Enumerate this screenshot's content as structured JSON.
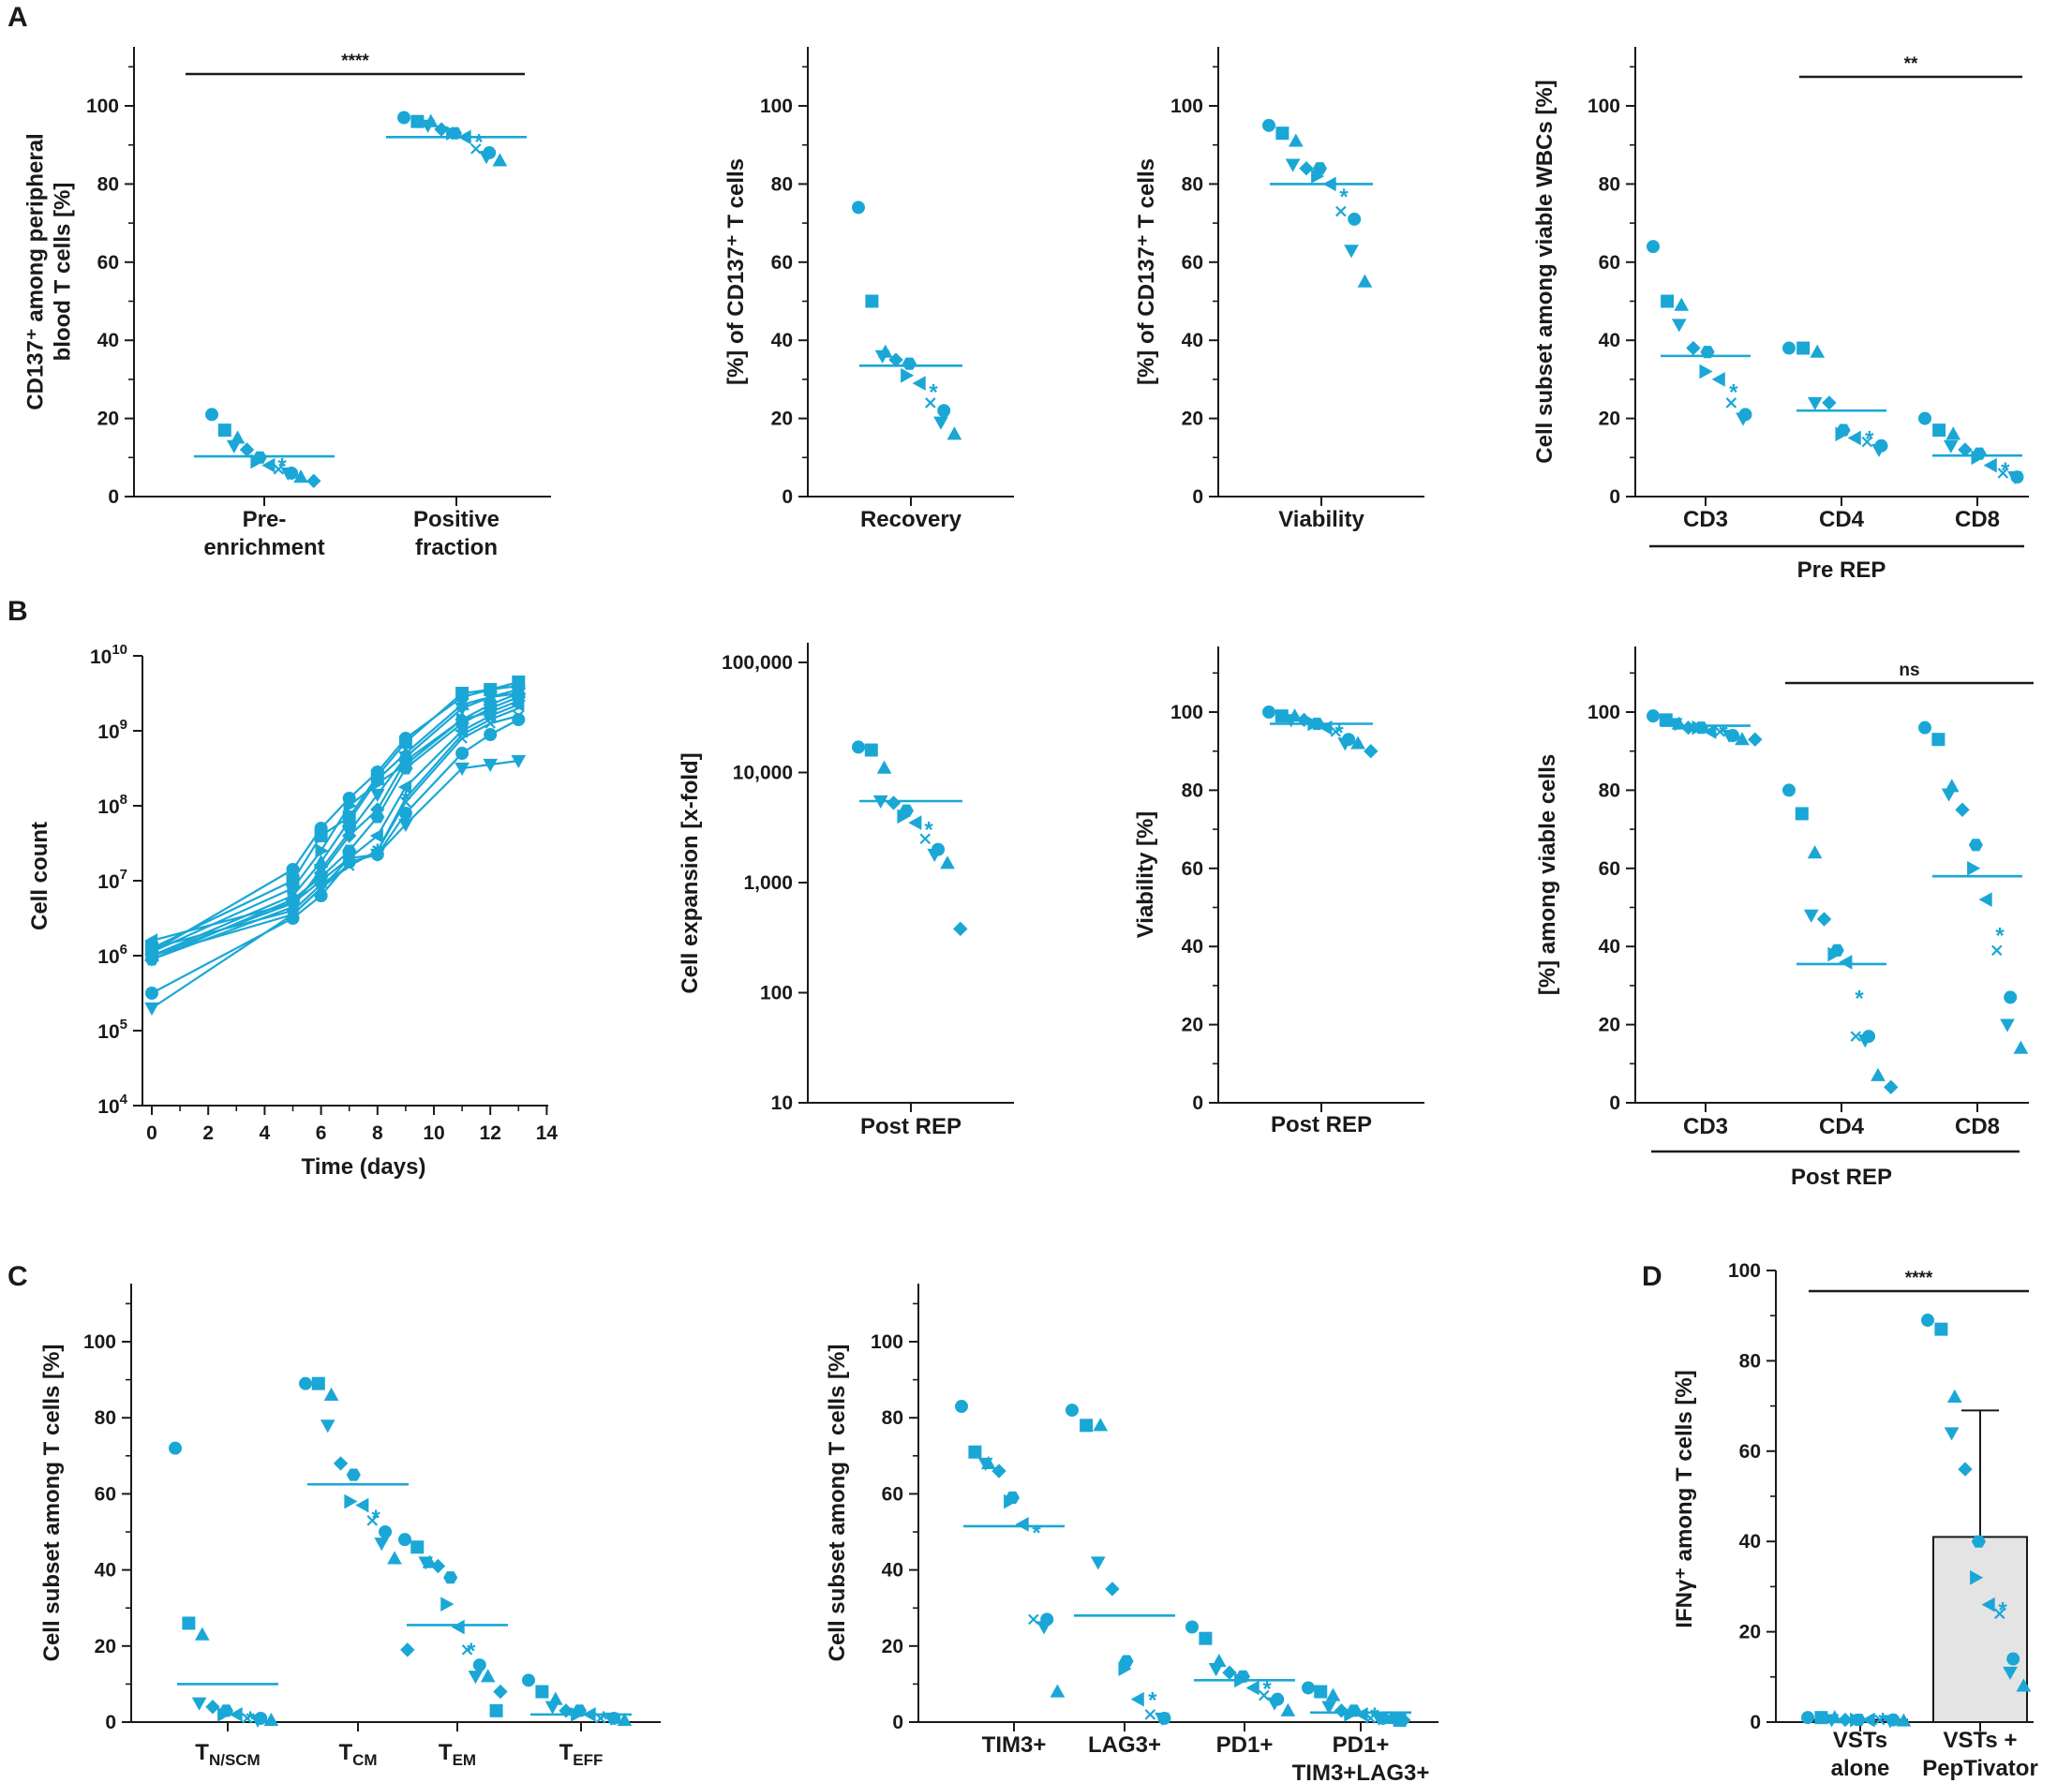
{
  "panels": [
    "A",
    "B",
    "C",
    "D"
  ],
  "color": "#1aa7d6",
  "chart_data": [
    {
      "id": "a1",
      "type": "scatter",
      "ylabel": "CD137+ among peripheral blood T cells [%]",
      "ylabel_lines": [
        "CD137⁺ among peripheral",
        "blood T cells [%]"
      ],
      "yticks": [
        "0",
        "20",
        "40",
        "60",
        "80",
        "100"
      ],
      "ylim": [
        0,
        115
      ],
      "categories": [
        "Pre-\nenrichment",
        "Positive\nfraction"
      ],
      "values": [
        [
          21,
          17,
          15,
          13,
          12,
          10,
          9,
          8,
          8,
          7,
          6,
          6,
          5,
          4
        ],
        [
          97,
          96,
          96,
          95,
          94,
          93,
          93,
          92,
          91,
          89,
          88,
          87,
          86
        ]
      ],
      "means": [
        10.3,
        92
      ],
      "sig": [
        {
          "text": "****",
          "from": 0,
          "to": 1
        }
      ]
    },
    {
      "id": "a2",
      "type": "scatter",
      "ylabel": "[%] of CD137+ T cells",
      "ylabel_lines": [
        "[%] of CD137⁺ T cells"
      ],
      "yticks": [
        "0",
        "20",
        "40",
        "60",
        "80",
        "100"
      ],
      "ylim": [
        0,
        115
      ],
      "categories": [
        "Recovery"
      ],
      "values": [
        [
          74,
          50,
          37,
          36,
          35,
          34,
          31,
          29,
          27,
          24,
          22,
          19,
          16
        ]
      ],
      "means": [
        33.5
      ]
    },
    {
      "id": "a3",
      "type": "scatter",
      "ylabel": "[%] of CD137+ T cells",
      "ylabel_lines": [
        "[%] of CD137⁺ T cells"
      ],
      "yticks": [
        "0",
        "20",
        "40",
        "60",
        "80",
        "100"
      ],
      "ylim": [
        0,
        115
      ],
      "categories": [
        "Viability"
      ],
      "values": [
        [
          95,
          93,
          91,
          85,
          84,
          84,
          82,
          80,
          77,
          73,
          71,
          63,
          55
        ]
      ],
      "means": [
        80
      ]
    },
    {
      "id": "a4",
      "type": "scatter",
      "ylabel": "Cell subset among viable WBCs [%]",
      "ylabel_lines": [
        "Cell subset among viable WBCs [%]"
      ],
      "yticks": [
        "0",
        "20",
        "40",
        "60",
        "80",
        "100"
      ],
      "ylim": [
        0,
        115
      ],
      "categories": [
        "CD3",
        "CD4",
        "CD8"
      ],
      "values": [
        [
          64,
          50,
          49,
          44,
          38,
          37,
          32,
          30,
          27,
          24,
          21,
          20
        ],
        [
          38,
          38,
          37,
          24,
          24,
          17,
          16,
          15,
          15,
          14,
          13,
          12
        ],
        [
          20,
          17,
          16,
          13,
          12,
          11,
          10,
          8,
          7,
          6,
          5,
          5
        ]
      ],
      "means": [
        36,
        22,
        10.5
      ],
      "group": "Pre REP",
      "sig": [
        {
          "text": "**",
          "from": 1,
          "to": 2
        }
      ]
    },
    {
      "id": "b1",
      "type": "line",
      "ylabel": "Cell count",
      "xlabel": "Time (days)",
      "xticks": [
        "0",
        "2",
        "4",
        "6",
        "8",
        "10",
        "12",
        "14"
      ],
      "yticks": [
        "10^4",
        "10^5",
        "10^6",
        "10^7",
        "10^8",
        "10^9",
        "10^10"
      ],
      "x": [
        0,
        5,
        6,
        7,
        8,
        9,
        11,
        12,
        13
      ],
      "series": [
        [
          6.05,
          7.15,
          7.7,
          8.1,
          8.45,
          8.9,
          9.45,
          9.55,
          9.6
        ],
        [
          6.1,
          7.0,
          7.6,
          7.85,
          8.4,
          8.85,
          9.5,
          9.55,
          9.65
        ],
        [
          6.0,
          6.8,
          7.25,
          7.8,
          8.35,
          8.7,
          9.35,
          9.45,
          9.55
        ],
        [
          5.95,
          6.65,
          7.15,
          7.65,
          8.15,
          8.65,
          9.3,
          9.45,
          9.5
        ],
        [
          6.0,
          6.7,
          7.1,
          7.6,
          7.95,
          8.6,
          9.15,
          9.35,
          9.5
        ],
        [
          5.95,
          6.75,
          7.05,
          7.4,
          7.85,
          8.5,
          9.1,
          9.3,
          9.45
        ],
        [
          6.05,
          6.9,
          7.4,
          8.0,
          8.3,
          8.55,
          9.15,
          9.25,
          9.4
        ],
        [
          6.2,
          6.7,
          7.0,
          7.3,
          7.6,
          8.25,
          9.0,
          9.2,
          9.35
        ],
        [
          6.1,
          6.6,
          6.95,
          7.2,
          7.4,
          8.1,
          8.95,
          9.15,
          9.3
        ],
        [
          6.0,
          6.55,
          6.9,
          7.2,
          7.4,
          8.05,
          8.9,
          9.1,
          9.2
        ],
        [
          5.5,
          6.5,
          6.8,
          7.25,
          7.35,
          7.9,
          8.7,
          8.95,
          9.15
        ],
        [
          5.3,
          6.55,
          6.9,
          7.3,
          7.35,
          7.75,
          8.5,
          8.55,
          8.6
        ]
      ]
    },
    {
      "id": "b2",
      "type": "scatter",
      "scale": "log",
      "ylabel": "Cell expansion [x-fold]",
      "yticks": [
        "10",
        "100",
        "1,000",
        "10,000",
        "100,000"
      ],
      "categories": [
        "Post REP"
      ],
      "values": [
        [
          17000,
          16000,
          11000,
          5500,
          5300,
          4500,
          4000,
          3500,
          3100,
          2500,
          2000,
          1800,
          1500,
          380
        ]
      ],
      "mean_value": 5500
    },
    {
      "id": "b3",
      "type": "scatter",
      "ylabel": "Viability [%]",
      "yticks": [
        "0",
        "20",
        "40",
        "60",
        "80",
        "100"
      ],
      "ylim": [
        0,
        115
      ],
      "categories": [
        "Post REP"
      ],
      "values": [
        [
          100,
          99,
          99,
          98,
          98,
          97,
          97,
          96,
          95,
          95,
          93,
          92,
          92,
          90
        ]
      ],
      "means": [
        97
      ]
    },
    {
      "id": "b4",
      "type": "scatter",
      "ylabel": "[%] among viable cells",
      "yticks": [
        "0",
        "20",
        "40",
        "60",
        "80",
        "100"
      ],
      "ylim": [
        0,
        115
      ],
      "categories": [
        "CD3",
        "CD4",
        "CD8"
      ],
      "values": [
        [
          99,
          98,
          97,
          97,
          96,
          96,
          96,
          95,
          95,
          95,
          94,
          94,
          93,
          93
        ],
        [
          80,
          74,
          64,
          48,
          47,
          39,
          38,
          36,
          27,
          17,
          17,
          16,
          7,
          4
        ],
        [
          96,
          93,
          81,
          79,
          75,
          66,
          60,
          52,
          43,
          39,
          27,
          20,
          14
        ]
      ],
      "means": [
        96.5,
        35.5,
        58
      ],
      "group": "Post REP",
      "sig": [
        {
          "text": "ns",
          "from": 1,
          "to": 2
        }
      ]
    },
    {
      "id": "c1",
      "type": "scatter",
      "ylabel": "Cell subset among T cells [%]",
      "yticks": [
        "0",
        "20",
        "40",
        "60",
        "80",
        "100"
      ],
      "ylim": [
        0,
        115
      ],
      "categories": [
        "T",
        "T",
        "T",
        "T"
      ],
      "subscripts": [
        "N/SCM",
        "CM",
        "EM",
        "EFF"
      ],
      "values": [
        [
          72,
          26,
          23,
          5,
          4,
          3,
          2,
          2,
          1,
          1,
          1,
          0.5,
          0.5
        ],
        [
          89,
          89,
          86,
          78,
          68,
          65,
          58,
          57,
          54,
          53,
          50,
          47,
          43,
          19
        ],
        [
          48,
          46,
          42,
          42,
          41,
          38,
          31,
          25,
          19,
          19,
          15,
          12,
          12,
          8,
          3
        ],
        [
          11,
          8,
          6,
          4,
          3,
          3,
          2,
          2,
          1,
          1,
          1,
          1,
          0.5
        ]
      ],
      "means": [
        10,
        62.5,
        25.5,
        2
      ]
    },
    {
      "id": "c2",
      "type": "scatter",
      "ylabel": "Cell subset among T cells [%]",
      "yticks": [
        "0",
        "20",
        "40",
        "60",
        "80",
        "100"
      ],
      "ylim": [
        0,
        115
      ],
      "categories": [
        "TIM3+",
        "LAG3+",
        "PD1+",
        "PD1+\nTIM3+LAG3+"
      ],
      "values": [
        [
          83,
          71,
          68,
          68,
          66,
          59,
          58,
          52,
          50,
          27,
          27,
          25,
          8
        ],
        [
          82,
          78,
          78,
          42,
          35,
          16,
          14,
          6,
          6,
          2,
          1,
          1
        ],
        [
          25,
          22,
          16,
          14,
          13,
          12,
          11,
          9,
          9,
          7,
          6,
          5,
          3
        ],
        [
          9,
          8,
          7,
          4,
          3,
          3,
          2,
          2,
          2,
          1,
          1,
          1,
          1,
          0.5,
          0.5
        ]
      ],
      "means": [
        51.5,
        28,
        11,
        2.5
      ]
    },
    {
      "id": "d1",
      "type": "bar",
      "ylabel": "IFNγ+ among T cells [%]",
      "yticks": [
        "0",
        "20",
        "40",
        "60",
        "80",
        "100"
      ],
      "ylim": [
        0,
        100
      ],
      "categories": [
        "VSTs\nalone",
        "VSTs +\nPepTivator"
      ],
      "bar_values": [
        0.5,
        41
      ],
      "error": [
        0,
        28
      ],
      "values": [
        [
          1,
          1,
          1,
          0.5,
          0.5,
          0.5,
          0.5,
          0.5,
          0.5,
          0.5,
          0.5,
          0.3,
          0.3
        ],
        [
          89,
          87,
          72,
          64,
          56,
          40,
          32,
          26,
          25,
          24,
          14,
          11,
          8
        ]
      ],
      "sig": [
        {
          "text": "****",
          "from": 0,
          "to": 1
        }
      ]
    }
  ]
}
